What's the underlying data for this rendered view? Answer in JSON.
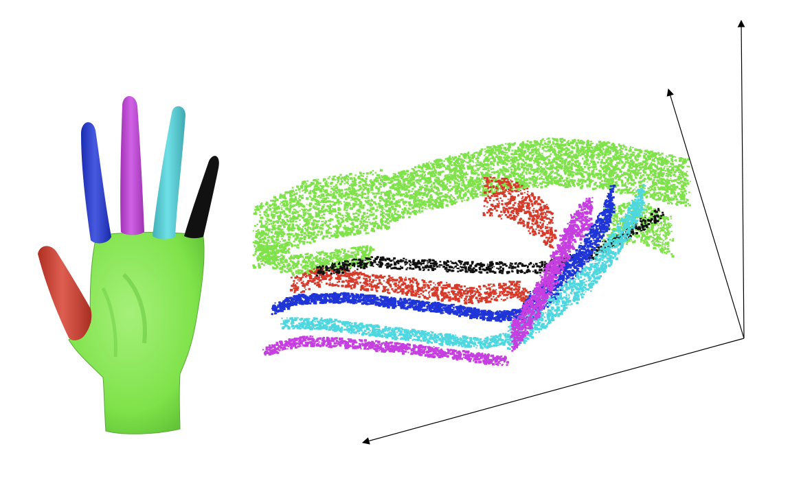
{
  "colors": {
    "background": "#ffffff",
    "palm": "#7fe24a",
    "thumb": "#d63a2a",
    "index": "#1f35d8",
    "middle": "#c63fe0",
    "ring": "#4fd7e0",
    "little": "#111111",
    "axes": "#000000"
  },
  "hand": {
    "segments": [
      {
        "id": "palm",
        "color_key": "palm"
      },
      {
        "id": "thumb",
        "color_key": "thumb"
      },
      {
        "id": "index",
        "color_key": "index"
      },
      {
        "id": "middle",
        "color_key": "middle"
      },
      {
        "id": "ring",
        "color_key": "ring"
      },
      {
        "id": "little",
        "color_key": "little"
      }
    ]
  },
  "embedding": {
    "clusters": [
      {
        "id": "palm",
        "color_key": "palm"
      },
      {
        "id": "thumb",
        "color_key": "thumb"
      },
      {
        "id": "little",
        "color_key": "little"
      },
      {
        "id": "index",
        "color_key": "index"
      },
      {
        "id": "ring",
        "color_key": "ring"
      },
      {
        "id": "middle",
        "color_key": "middle"
      }
    ],
    "axes_count": 3
  }
}
